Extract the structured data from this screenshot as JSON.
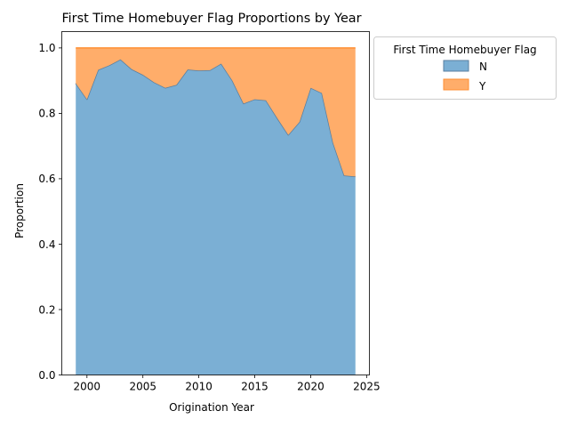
{
  "chart_data": {
    "type": "area",
    "stacked": true,
    "title": "First Time Homebuyer Flag Proportions by Year",
    "xlabel": "Origination Year",
    "ylabel": "Proportion",
    "xlim": [
      1997.75,
      2025.25
    ],
    "ylim": [
      0,
      1.05
    ],
    "xticks": [
      "2000",
      "2005",
      "2010",
      "2015",
      "2020",
      "2025"
    ],
    "yticks": [
      "0.0",
      "0.2",
      "0.4",
      "0.6",
      "0.8",
      "1.0"
    ],
    "grid": false,
    "legend": {
      "title": "First Time Homebuyer Flag",
      "placement": "outside top-right"
    },
    "x": [
      1999,
      2000,
      2001,
      2002,
      2003,
      2004,
      2005,
      2006,
      2007,
      2008,
      2009,
      2010,
      2011,
      2012,
      2013,
      2014,
      2015,
      2016,
      2017,
      2018,
      2019,
      2020,
      2021,
      2022,
      2023,
      2024
    ],
    "series": [
      {
        "name": "N",
        "color": "#7bafd4",
        "edge": "#5a7fa0",
        "values": [
          0.892,
          0.843,
          0.933,
          0.947,
          0.965,
          0.935,
          0.918,
          0.895,
          0.878,
          0.887,
          0.934,
          0.931,
          0.932,
          0.952,
          0.9,
          0.83,
          0.843,
          0.84,
          0.786,
          0.734,
          0.774,
          0.878,
          0.862,
          0.71,
          0.61,
          0.607
        ]
      },
      {
        "name": "Y",
        "color": "#ffad6a",
        "edge": "#ff8f33",
        "values": [
          0.108,
          0.157,
          0.067,
          0.053,
          0.035,
          0.065,
          0.082,
          0.105,
          0.122,
          0.113,
          0.066,
          0.069,
          0.068,
          0.048,
          0.1,
          0.17,
          0.157,
          0.16,
          0.214,
          0.266,
          0.226,
          0.122,
          0.138,
          0.29,
          0.39,
          0.393
        ]
      }
    ]
  }
}
